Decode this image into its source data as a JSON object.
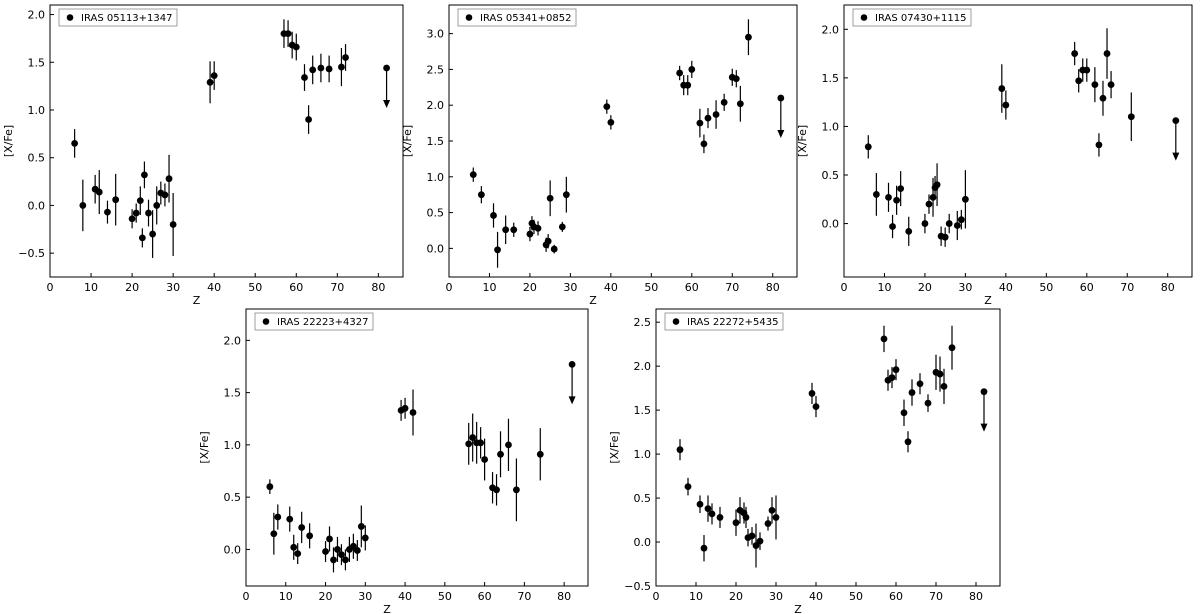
{
  "chart_data": [
    {
      "type": "scatter",
      "legend": "IRAS 05113+1347",
      "xlabel": "Z",
      "ylabel": "[X/Fe]",
      "xlim": [
        0,
        86
      ],
      "ylim": [
        -0.75,
        2.1
      ],
      "xticks": [
        0,
        10,
        20,
        30,
        40,
        50,
        60,
        70,
        80
      ],
      "yticks": [
        -0.5,
        0.0,
        0.5,
        1.0,
        1.5,
        2.0
      ],
      "ytick_labels": [
        "−0.5",
        "0.0",
        "0.5",
        "1.0",
        "1.5",
        "2.0"
      ],
      "points": [
        {
          "x": 6,
          "y": 0.65,
          "err": 0.15
        },
        {
          "x": 8,
          "y": 0.0,
          "err": 0.27
        },
        {
          "x": 11,
          "y": 0.17,
          "err": 0.15
        },
        {
          "x": 12,
          "y": 0.14,
          "err": 0.23
        },
        {
          "x": 14,
          "y": -0.07,
          "err": 0.12
        },
        {
          "x": 16,
          "y": 0.06,
          "err": 0.27
        },
        {
          "x": 20,
          "y": -0.14,
          "err": 0.1
        },
        {
          "x": 21,
          "y": -0.08,
          "err": 0.1
        },
        {
          "x": 22,
          "y": 0.05,
          "err": 0.15
        },
        {
          "x": 22.5,
          "y": -0.34,
          "err": 0.1
        },
        {
          "x": 23,
          "y": 0.32,
          "err": 0.14
        },
        {
          "x": 24,
          "y": -0.08,
          "err": 0.14
        },
        {
          "x": 25,
          "y": -0.3,
          "err": 0.25
        },
        {
          "x": 26,
          "y": 0.0,
          "err": 0.2
        },
        {
          "x": 27,
          "y": 0.13,
          "err": 0.12
        },
        {
          "x": 28,
          "y": 0.11,
          "err": 0.12
        },
        {
          "x": 29,
          "y": 0.28,
          "err": 0.25
        },
        {
          "x": 30,
          "y": -0.2,
          "err": 0.33
        },
        {
          "x": 39,
          "y": 1.29,
          "err": 0.22
        },
        {
          "x": 40,
          "y": 1.36,
          "err": 0.15
        },
        {
          "x": 57,
          "y": 1.8,
          "err": 0.15
        },
        {
          "x": 58,
          "y": 1.8,
          "err": 0.14
        },
        {
          "x": 59,
          "y": 1.68,
          "err": 0.14
        },
        {
          "x": 60,
          "y": 1.66,
          "err": 0.14
        },
        {
          "x": 62,
          "y": 1.34,
          "err": 0.14
        },
        {
          "x": 63,
          "y": 0.9,
          "err": 0.15
        },
        {
          "x": 64,
          "y": 1.42,
          "err": 0.15
        },
        {
          "x": 66,
          "y": 1.44,
          "err": 0.15
        },
        {
          "x": 68,
          "y": 1.43,
          "err": 0.14
        },
        {
          "x": 71,
          "y": 1.45,
          "err": 0.2
        },
        {
          "x": 72,
          "y": 1.55,
          "err": 0.14
        },
        {
          "x": 82,
          "y": 1.44,
          "upper_limit": true
        }
      ]
    },
    {
      "type": "scatter",
      "legend": "IRAS 05341+0852",
      "xlabel": "Z",
      "ylabel": "[X/Fe]",
      "xlim": [
        0,
        86
      ],
      "ylim": [
        -0.4,
        3.4
      ],
      "xticks": [
        0,
        10,
        20,
        30,
        40,
        50,
        60,
        70,
        80
      ],
      "yticks": [
        0.0,
        0.5,
        1.0,
        1.5,
        2.0,
        2.5,
        3.0
      ],
      "ytick_labels": [
        "0.0",
        "0.5",
        "1.0",
        "1.5",
        "2.0",
        "2.5",
        "3.0"
      ],
      "points": [
        {
          "x": 6,
          "y": 1.03,
          "err": 0.1
        },
        {
          "x": 8,
          "y": 0.75,
          "err": 0.12
        },
        {
          "x": 11,
          "y": 0.46,
          "err": 0.17
        },
        {
          "x": 12,
          "y": -0.02,
          "err": 0.25
        },
        {
          "x": 14,
          "y": 0.26,
          "err": 0.2
        },
        {
          "x": 16,
          "y": 0.26,
          "err": 0.1
        },
        {
          "x": 20,
          "y": 0.2,
          "err": 0.1
        },
        {
          "x": 20.5,
          "y": 0.35,
          "err": 0.1
        },
        {
          "x": 21,
          "y": 0.3,
          "err": 0.1
        },
        {
          "x": 22,
          "y": 0.28,
          "err": 0.1
        },
        {
          "x": 24,
          "y": 0.05,
          "err": 0.1
        },
        {
          "x": 24.5,
          "y": 0.1,
          "err": 0.1
        },
        {
          "x": 25,
          "y": 0.7,
          "err": 0.25
        },
        {
          "x": 26,
          "y": -0.01,
          "err": 0.06
        },
        {
          "x": 28,
          "y": 0.3,
          "err": 0.07
        },
        {
          "x": 29,
          "y": 0.75,
          "err": 0.25
        },
        {
          "x": 39,
          "y": 1.98,
          "err": 0.1
        },
        {
          "x": 40,
          "y": 1.76,
          "err": 0.1
        },
        {
          "x": 57,
          "y": 2.45,
          "err": 0.1
        },
        {
          "x": 58,
          "y": 2.28,
          "err": 0.14
        },
        {
          "x": 59,
          "y": 2.28,
          "err": 0.14
        },
        {
          "x": 60,
          "y": 2.5,
          "err": 0.12
        },
        {
          "x": 62,
          "y": 1.75,
          "err": 0.2
        },
        {
          "x": 63,
          "y": 1.46,
          "err": 0.13
        },
        {
          "x": 64,
          "y": 1.82,
          "err": 0.14
        },
        {
          "x": 66,
          "y": 1.87,
          "err": 0.2
        },
        {
          "x": 68,
          "y": 2.04,
          "err": 0.12
        },
        {
          "x": 70,
          "y": 2.39,
          "err": 0.12
        },
        {
          "x": 71,
          "y": 2.37,
          "err": 0.12
        },
        {
          "x": 72,
          "y": 2.02,
          "err": 0.25
        },
        {
          "x": 74,
          "y": 2.95,
          "err": 0.25
        },
        {
          "x": 82,
          "y": 2.1,
          "upper_limit": true
        }
      ]
    },
    {
      "type": "scatter",
      "legend": "IRAS 07430+1115",
      "xlabel": "Z",
      "ylabel": "[X/Fe]",
      "xlim": [
        0,
        86
      ],
      "ylim": [
        -0.55,
        2.25
      ],
      "xticks": [
        0,
        10,
        20,
        30,
        40,
        50,
        60,
        70,
        80
      ],
      "yticks": [
        0.0,
        0.5,
        1.0,
        1.5,
        2.0
      ],
      "ytick_labels": [
        "0.0",
        "0.5",
        "1.0",
        "1.5",
        "2.0"
      ],
      "points": [
        {
          "x": 6,
          "y": 0.79,
          "err": 0.12
        },
        {
          "x": 8,
          "y": 0.3,
          "err": 0.22
        },
        {
          "x": 11,
          "y": 0.27,
          "err": 0.15
        },
        {
          "x": 12,
          "y": -0.03,
          "err": 0.12
        },
        {
          "x": 13,
          "y": 0.24,
          "err": 0.15
        },
        {
          "x": 14,
          "y": 0.36,
          "err": 0.18
        },
        {
          "x": 16,
          "y": -0.08,
          "err": 0.15
        },
        {
          "x": 20,
          "y": 0.0,
          "err": 0.1
        },
        {
          "x": 21,
          "y": 0.2,
          "err": 0.1
        },
        {
          "x": 22,
          "y": 0.27,
          "err": 0.2
        },
        {
          "x": 22.5,
          "y": 0.37,
          "err": 0.12
        },
        {
          "x": 23,
          "y": 0.4,
          "err": 0.22
        },
        {
          "x": 24,
          "y": -0.13,
          "err": 0.1
        },
        {
          "x": 25,
          "y": -0.14,
          "err": 0.1
        },
        {
          "x": 26,
          "y": 0.0,
          "err": 0.1
        },
        {
          "x": 28,
          "y": -0.02,
          "err": 0.15
        },
        {
          "x": 29,
          "y": 0.04,
          "err": 0.1
        },
        {
          "x": 30,
          "y": 0.25,
          "err": 0.3
        },
        {
          "x": 39,
          "y": 1.39,
          "err": 0.25
        },
        {
          "x": 40,
          "y": 1.22,
          "err": 0.15
        },
        {
          "x": 57,
          "y": 1.75,
          "err": 0.12
        },
        {
          "x": 58,
          "y": 1.47,
          "err": 0.12
        },
        {
          "x": 59,
          "y": 1.58,
          "err": 0.12
        },
        {
          "x": 60,
          "y": 1.58,
          "err": 0.12
        },
        {
          "x": 62,
          "y": 1.43,
          "err": 0.18
        },
        {
          "x": 63,
          "y": 0.81,
          "err": 0.12
        },
        {
          "x": 64,
          "y": 1.29,
          "err": 0.18
        },
        {
          "x": 65,
          "y": 1.75,
          "err": 0.26
        },
        {
          "x": 66,
          "y": 1.43,
          "err": 0.14
        },
        {
          "x": 71,
          "y": 1.1,
          "err": 0.25
        },
        {
          "x": 82,
          "y": 1.06,
          "upper_limit": true
        }
      ]
    },
    {
      "type": "scatter",
      "legend": "IRAS 22223+4327",
      "xlabel": "Z",
      "ylabel": "[X/Fe]",
      "xlim": [
        0,
        86
      ],
      "ylim": [
        -0.35,
        2.3
      ],
      "xticks": [
        0,
        10,
        20,
        30,
        40,
        50,
        60,
        70,
        80
      ],
      "yticks": [
        0.0,
        0.5,
        1.0,
        1.5,
        2.0
      ],
      "ytick_labels": [
        "0.0",
        "0.5",
        "1.0",
        "1.5",
        "2.0"
      ],
      "points": [
        {
          "x": 6,
          "y": 0.6,
          "err": 0.07
        },
        {
          "x": 7,
          "y": 0.15,
          "err": 0.2
        },
        {
          "x": 8,
          "y": 0.31,
          "err": 0.12
        },
        {
          "x": 11,
          "y": 0.29,
          "err": 0.12
        },
        {
          "x": 12,
          "y": 0.02,
          "err": 0.12
        },
        {
          "x": 13,
          "y": -0.04,
          "err": 0.1
        },
        {
          "x": 14,
          "y": 0.21,
          "err": 0.15
        },
        {
          "x": 16,
          "y": 0.13,
          "err": 0.12
        },
        {
          "x": 20,
          "y": -0.02,
          "err": 0.1
        },
        {
          "x": 21,
          "y": 0.1,
          "err": 0.12
        },
        {
          "x": 22,
          "y": -0.1,
          "err": 0.12
        },
        {
          "x": 23,
          "y": 0.0,
          "err": 0.12
        },
        {
          "x": 24,
          "y": -0.05,
          "err": 0.1
        },
        {
          "x": 25,
          "y": -0.1,
          "err": 0.1
        },
        {
          "x": 26,
          "y": 0.0,
          "err": 0.12
        },
        {
          "x": 27,
          "y": 0.03,
          "err": 0.12
        },
        {
          "x": 28,
          "y": -0.01,
          "err": 0.1
        },
        {
          "x": 29,
          "y": 0.22,
          "err": 0.2
        },
        {
          "x": 30,
          "y": 0.11,
          "err": 0.12
        },
        {
          "x": 39,
          "y": 1.33,
          "err": 0.1
        },
        {
          "x": 40,
          "y": 1.35,
          "err": 0.1
        },
        {
          "x": 42,
          "y": 1.31,
          "err": 0.22
        },
        {
          "x": 56,
          "y": 1.01,
          "err": 0.2
        },
        {
          "x": 57,
          "y": 1.07,
          "err": 0.23
        },
        {
          "x": 58,
          "y": 1.02,
          "err": 0.2
        },
        {
          "x": 59,
          "y": 1.02,
          "err": 0.15
        },
        {
          "x": 60,
          "y": 0.86,
          "err": 0.2
        },
        {
          "x": 62,
          "y": 0.59,
          "err": 0.15
        },
        {
          "x": 63,
          "y": 0.57,
          "err": 0.15
        },
        {
          "x": 64,
          "y": 0.91,
          "err": 0.22
        },
        {
          "x": 66,
          "y": 1.0,
          "err": 0.25
        },
        {
          "x": 68,
          "y": 0.57,
          "err": 0.3
        },
        {
          "x": 74,
          "y": 0.91,
          "err": 0.25
        },
        {
          "x": 82,
          "y": 1.77,
          "upper_limit": true
        }
      ]
    },
    {
      "type": "scatter",
      "legend": "IRAS 22272+5435",
      "xlabel": "Z",
      "ylabel": "[X/Fe]",
      "xlim": [
        0,
        86
      ],
      "ylim": [
        -0.5,
        2.65
      ],
      "xticks": [
        0,
        10,
        20,
        30,
        40,
        50,
        60,
        70,
        80
      ],
      "yticks": [
        -0.5,
        0.0,
        0.5,
        1.0,
        1.5,
        2.0,
        2.5
      ],
      "ytick_labels": [
        "−0.5",
        "0.0",
        "0.5",
        "1.0",
        "1.5",
        "2.0",
        "2.5"
      ],
      "points": [
        {
          "x": 6,
          "y": 1.05,
          "err": 0.12
        },
        {
          "x": 8,
          "y": 0.63,
          "err": 0.1
        },
        {
          "x": 11,
          "y": 0.43,
          "err": 0.1
        },
        {
          "x": 12,
          "y": -0.07,
          "err": 0.15
        },
        {
          "x": 13,
          "y": 0.38,
          "err": 0.15
        },
        {
          "x": 14,
          "y": 0.32,
          "err": 0.12
        },
        {
          "x": 16,
          "y": 0.28,
          "err": 0.12
        },
        {
          "x": 20,
          "y": 0.22,
          "err": 0.15
        },
        {
          "x": 21,
          "y": 0.36,
          "err": 0.15
        },
        {
          "x": 22,
          "y": 0.33,
          "err": 0.12
        },
        {
          "x": 22.5,
          "y": 0.28,
          "err": 0.12
        },
        {
          "x": 23,
          "y": 0.05,
          "err": 0.1
        },
        {
          "x": 24,
          "y": 0.07,
          "err": 0.1
        },
        {
          "x": 25,
          "y": -0.04,
          "err": 0.25
        },
        {
          "x": 26,
          "y": 0.01,
          "err": 0.1
        },
        {
          "x": 28,
          "y": 0.21,
          "err": 0.08
        },
        {
          "x": 29,
          "y": 0.36,
          "err": 0.15
        },
        {
          "x": 30,
          "y": 0.28,
          "err": 0.25
        },
        {
          "x": 39,
          "y": 1.69,
          "err": 0.12
        },
        {
          "x": 40,
          "y": 1.54,
          "err": 0.12
        },
        {
          "x": 57,
          "y": 2.31,
          "err": 0.15
        },
        {
          "x": 58,
          "y": 1.84,
          "err": 0.12
        },
        {
          "x": 59,
          "y": 1.87,
          "err": 0.12
        },
        {
          "x": 60,
          "y": 1.96,
          "err": 0.12
        },
        {
          "x": 62,
          "y": 1.47,
          "err": 0.15
        },
        {
          "x": 63,
          "y": 1.14,
          "err": 0.12
        },
        {
          "x": 64,
          "y": 1.7,
          "err": 0.15
        },
        {
          "x": 66,
          "y": 1.8,
          "err": 0.12
        },
        {
          "x": 68,
          "y": 1.58,
          "err": 0.1
        },
        {
          "x": 70,
          "y": 1.93,
          "err": 0.2
        },
        {
          "x": 71,
          "y": 1.91,
          "err": 0.2
        },
        {
          "x": 72,
          "y": 1.77,
          "err": 0.2
        },
        {
          "x": 74,
          "y": 2.21,
          "err": 0.25
        },
        {
          "x": 82,
          "y": 1.71,
          "upper_limit": true
        }
      ]
    }
  ]
}
